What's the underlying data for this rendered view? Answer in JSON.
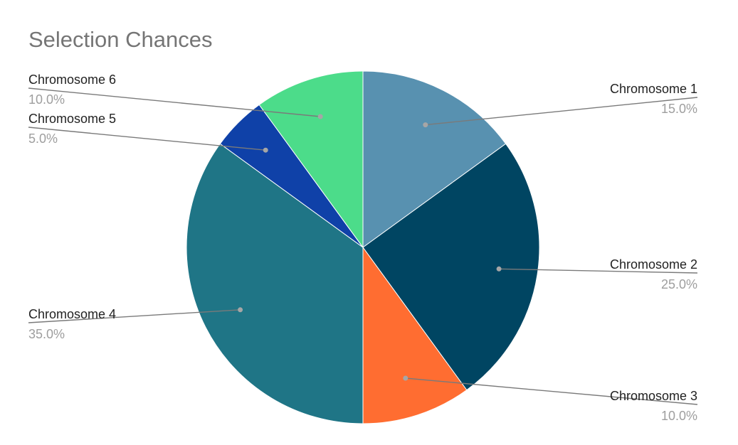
{
  "chart_data": {
    "type": "pie",
    "title": "Selection Chances",
    "start_angle_deg": 0,
    "direction": "clockwise",
    "slices": [
      {
        "label": "Chromosome 1",
        "value": 15.0,
        "percent_label": "15.0%",
        "color": "#5891b0",
        "label_side": "right"
      },
      {
        "label": "Chromosome 2",
        "value": 25.0,
        "percent_label": "25.0%",
        "color": "#004562",
        "label_side": "right"
      },
      {
        "label": "Chromosome 3",
        "value": 10.0,
        "percent_label": "10.0%",
        "color": "#ff6d31",
        "label_side": "right"
      },
      {
        "label": "Chromosome 4",
        "value": 35.0,
        "percent_label": "35.0%",
        "color": "#1f7586",
        "label_side": "left"
      },
      {
        "label": "Chromosome 5",
        "value": 5.0,
        "percent_label": "5.0%",
        "color": "#0f41a8",
        "label_side": "left"
      },
      {
        "label": "Chromosome 6",
        "value": 10.0,
        "percent_label": "10.0%",
        "color": "#4cdc8a",
        "label_side": "left"
      }
    ]
  }
}
